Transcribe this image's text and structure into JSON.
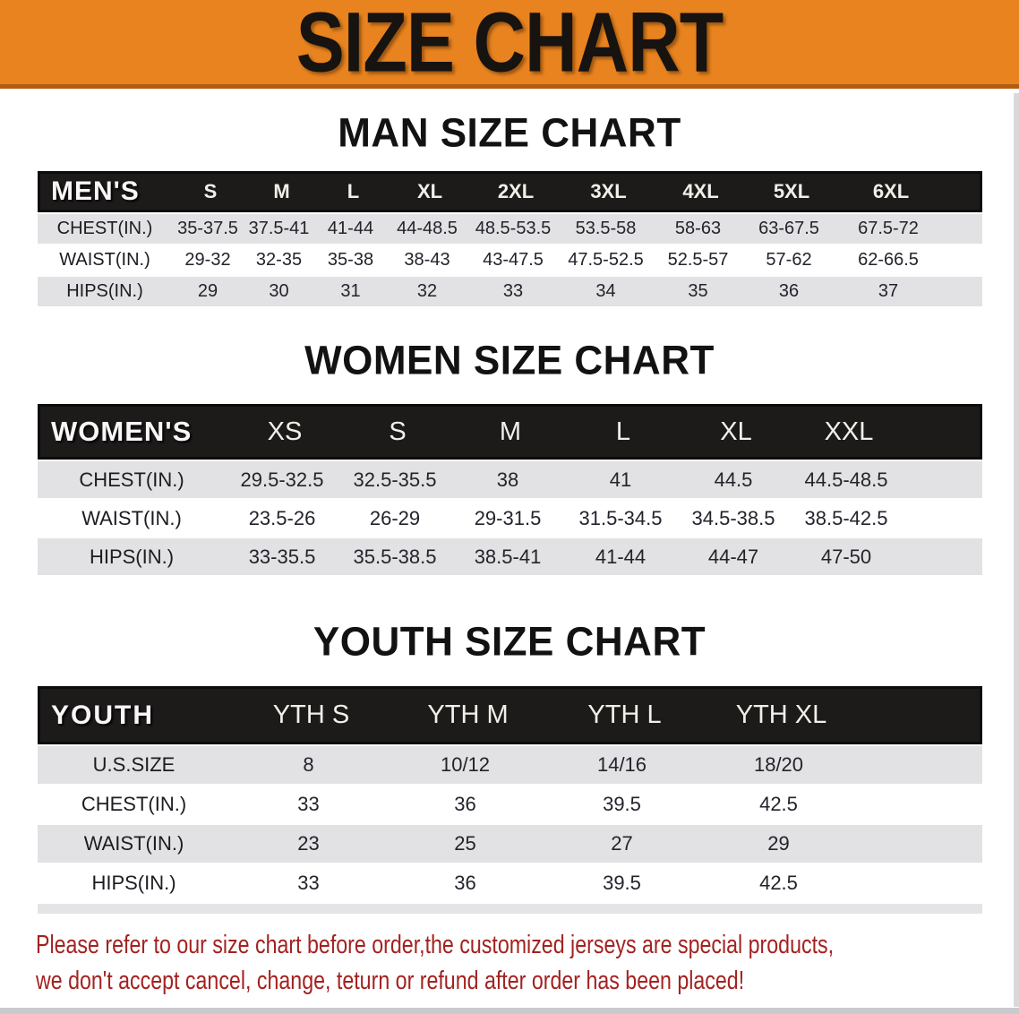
{
  "banner": {
    "title": "SIZE CHART"
  },
  "colors": {
    "banner_orange": "#e8831f",
    "banner_edge": "#b25c10",
    "header_black": "#1d1a1a",
    "row_gray": "#e2e2e4",
    "disclaimer_red": "#a32220"
  },
  "sections": [
    {
      "id": "men",
      "heading": "MAN SIZE CHART",
      "corner_label": "MEN'S",
      "sizes": [
        "S",
        "M",
        "L",
        "XL",
        "2XL",
        "3XL",
        "4XL",
        "5XL",
        "6XL"
      ],
      "rows": [
        {
          "label": "CHEST(IN.)",
          "values": [
            "35-37.5",
            "37.5-41",
            "41-44",
            "44-48.5",
            "48.5-53.5",
            "53.5-58",
            "58-63",
            "63-67.5",
            "67.5-72"
          ]
        },
        {
          "label": "WAIST(IN.)",
          "values": [
            "29-32",
            "32-35",
            "35-38",
            "38-43",
            "43-47.5",
            "47.5-52.5",
            "52.5-57",
            "57-62",
            "62-66.5"
          ]
        },
        {
          "label": "HIPS(IN.)",
          "values": [
            "29",
            "30",
            "31",
            "32",
            "33",
            "34",
            "35",
            "36",
            "37"
          ]
        }
      ]
    },
    {
      "id": "women",
      "heading": "WOMEN SIZE CHART",
      "corner_label": "WOMEN'S",
      "sizes": [
        "XS",
        "S",
        "M",
        "L",
        "XL",
        "XXL"
      ],
      "rows": [
        {
          "label": "CHEST(IN.)",
          "values": [
            "29.5-32.5",
            "32.5-35.5",
            "38",
            "41",
            "44.5",
            "44.5-48.5"
          ]
        },
        {
          "label": "WAIST(IN.)",
          "values": [
            "23.5-26",
            "26-29",
            "29-31.5",
            "31.5-34.5",
            "34.5-38.5",
            "38.5-42.5"
          ]
        },
        {
          "label": "HIPS(IN.)",
          "values": [
            "33-35.5",
            "35.5-38.5",
            "38.5-41",
            "41-44",
            "44-47",
            "47-50"
          ]
        }
      ]
    },
    {
      "id": "youth",
      "heading": "YOUTH SIZE CHART",
      "corner_label": "YOUTH",
      "sizes": [
        "YTH S",
        "YTH M",
        "YTH L",
        "YTH XL"
      ],
      "rows": [
        {
          "label": "U.S.SIZE",
          "values": [
            "8",
            "10/12",
            "14/16",
            "18/20"
          ]
        },
        {
          "label": "CHEST(IN.)",
          "values": [
            "33",
            "36",
            "39.5",
            "42.5"
          ]
        },
        {
          "label": "WAIST(IN.)",
          "values": [
            "23",
            "25",
            "27",
            "29"
          ]
        },
        {
          "label": "HIPS(IN.)",
          "values": [
            "33",
            "36",
            "39.5",
            "42.5"
          ]
        }
      ]
    }
  ],
  "disclaimer": {
    "line1": "Please refer to our size chart before order,the customized jerseys are special products,",
    "line2": "we don't accept cancel, change, teturn or refund after order has been placed!"
  }
}
